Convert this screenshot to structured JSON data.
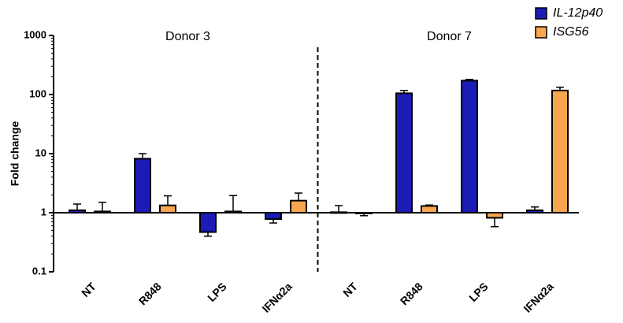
{
  "chart_data": {
    "type": "bar",
    "y_label": "Fold change",
    "log_scale": true,
    "baseline": 1,
    "annotations": [
      "Donor 3",
      "Donor 7"
    ],
    "categories": [
      "NT",
      "R848",
      "LPS",
      "IFNα2a",
      "NT",
      "R848",
      "LPS",
      "IFNα2a"
    ],
    "series": [
      {
        "name": "IL-12p40",
        "color": "#1b1bb5",
        "values": [
          1.1,
          8.2,
          0.47,
          0.78,
          1.02,
          105,
          172,
          1.1
        ],
        "errors": [
          0.3,
          1.8,
          0.07,
          0.11,
          0.3,
          12,
          8,
          0.15
        ]
      },
      {
        "name": "ISG56",
        "color": "#f7a64f",
        "values": [
          1.05,
          1.33,
          1.05,
          1.6,
          0.97,
          1.3,
          0.82,
          117
        ],
        "errors": [
          0.45,
          0.6,
          0.9,
          0.55,
          0.08,
          0.05,
          0.24,
          16
        ]
      }
    ],
    "ylim": [
      0.1,
      1000
    ],
    "yticks": [
      0.1,
      1,
      10,
      100,
      1000
    ],
    "legend": "top-right"
  }
}
